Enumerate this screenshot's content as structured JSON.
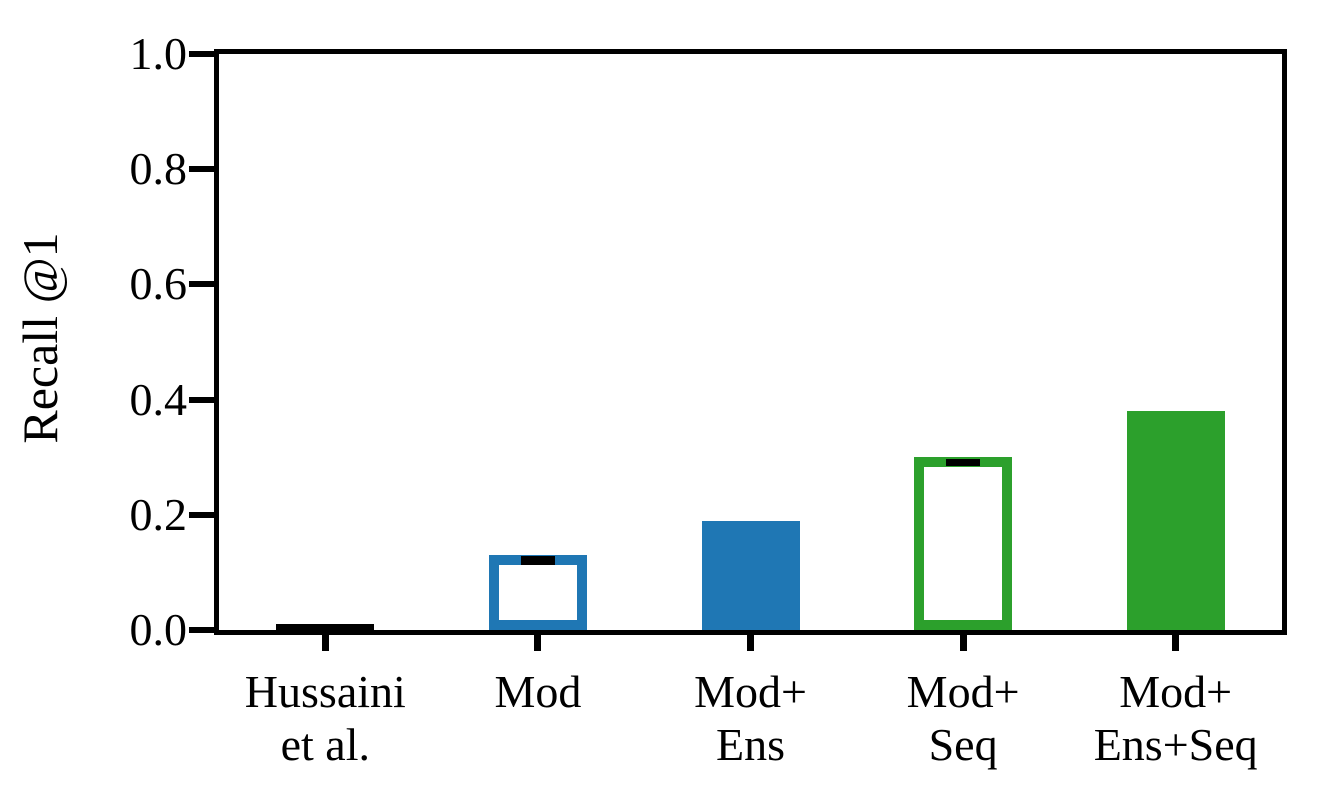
{
  "chart": {
    "background_color": "#ffffff",
    "axis_color": "#000000",
    "ylabel": "Recall @1"
  },
  "chart_data": {
    "type": "bar",
    "title": "",
    "xlabel": "",
    "ylabel": "Recall @1",
    "ylim": [
      0.0,
      1.0
    ],
    "ytick_labels": [
      "0.0",
      "0.2",
      "0.4",
      "0.6",
      "0.8",
      "1.0"
    ],
    "ytick_values": [
      0.0,
      0.2,
      0.4,
      0.6,
      0.8,
      1.0
    ],
    "grid": false,
    "legend_position": "none",
    "categories": [
      "Hussaini et al.",
      "Mod",
      "Mod+Ens",
      "Mod+Seq",
      "Mod+Ens+Seq"
    ],
    "values": [
      0.01,
      0.13,
      0.19,
      0.3,
      0.38
    ],
    "error_bar_color": "#000000",
    "bars": [
      {
        "category_lines": [
          "Hussaini",
          "et al."
        ],
        "value": 0.01,
        "color": "#000000",
        "style": "filled",
        "error_bar": null
      },
      {
        "category_lines": [
          "Mod"
        ],
        "value": 0.13,
        "color": "#1f77b4",
        "style": "outlined",
        "error_bar": {
          "center": 0.12,
          "half_range": 0.008
        }
      },
      {
        "category_lines": [
          "Mod+",
          "Ens"
        ],
        "value": 0.19,
        "color": "#1f77b4",
        "style": "filled",
        "error_bar": null
      },
      {
        "category_lines": [
          "Mod+",
          "Seq"
        ],
        "value": 0.3,
        "color": "#2ca02c",
        "style": "outlined",
        "error_bar": {
          "center": 0.29,
          "half_range": 0.006
        }
      },
      {
        "category_lines": [
          "Mod+",
          "Ens+Seq"
        ],
        "value": 0.38,
        "color": "#2ca02c",
        "style": "filled",
        "error_bar": null
      }
    ]
  }
}
